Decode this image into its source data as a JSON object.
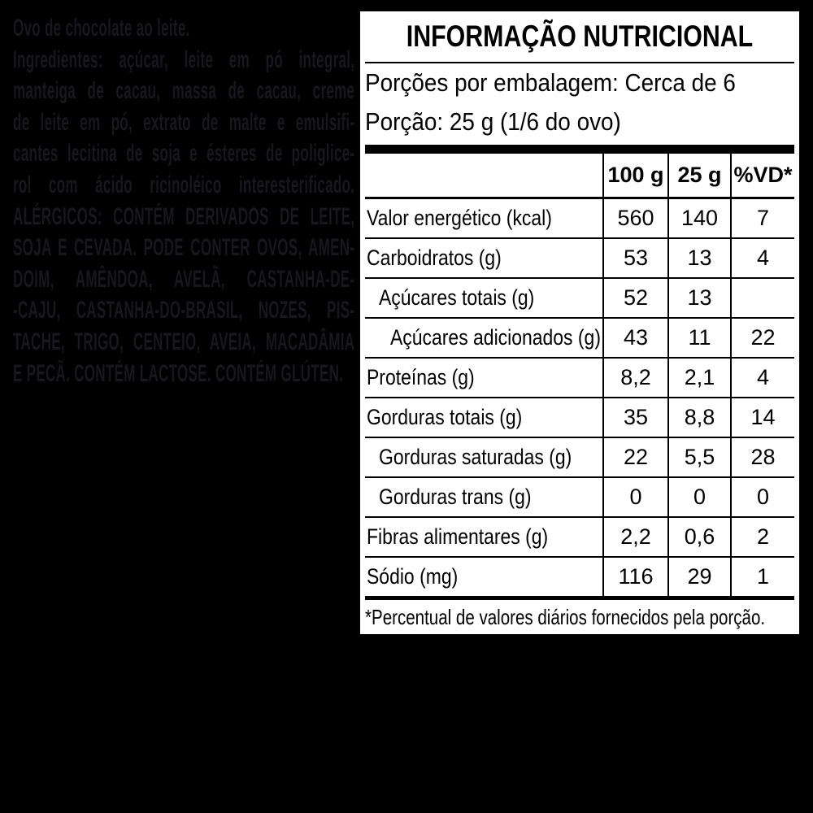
{
  "colors": {
    "background": "#000000",
    "panel_background": "#ffffff",
    "panel_text": "#000000",
    "faint_text": "#17171c"
  },
  "left_panel": {
    "lines": [
      {
        "text": "Ovo de chocolate ao leite.",
        "justify": false
      },
      {
        "text": "Ingredientes:  açúcar, leite em pó integral,",
        "justify": true
      },
      {
        "text": "manteiga de cacau, massa de cacau, creme",
        "justify": true
      },
      {
        "text": "de leite em pó, extrato de malte e emulsifi-",
        "justify": true
      },
      {
        "text": "cantes lecitina de soja e ésteres de poliglice-",
        "justify": true
      },
      {
        "text": "rol com ácido ricinoléico interesterificado.",
        "justify": true
      },
      {
        "text": "ALÉRGICOS: CONTÉM DERIVADOS DE LEITE,",
        "justify": true
      },
      {
        "text": "SOJA E CEVADA. PODE CONTER OVOS, AMEN-",
        "justify": true
      },
      {
        "text": "DOIM, AMÊNDOA, AVELÃ, CASTANHA-DE-",
        "justify": true
      },
      {
        "text": "-CAJU, CASTANHA-DO-BRASIL, NOZES, PIS-",
        "justify": true
      },
      {
        "text": "TACHE, TRIGO, CENTEIO, AVEIA, MACADÂMIA",
        "justify": true
      },
      {
        "text": "E PECÃ. CONTÉM LACTOSE. CONTÉM GLÚTEN.",
        "justify": false
      }
    ]
  },
  "nutrition_panel": {
    "title": "INFORMAÇÃO NUTRICIONAL",
    "servings_line": "Porções por embalagem: Cerca de 6",
    "portion_line": "Porção: 25 g (1/6 do ovo)",
    "columns": [
      "100 g",
      "25 g",
      "%VD*"
    ],
    "rows": [
      {
        "label": "Valor energético (kcal)",
        "indent": 0,
        "v100": "560",
        "v25": "140",
        "vd": "7"
      },
      {
        "label": "Carboidratos (g)",
        "indent": 0,
        "v100": "53",
        "v25": "13",
        "vd": "4"
      },
      {
        "label": "Açúcares totais (g)",
        "indent": 1,
        "v100": "52",
        "v25": "13",
        "vd": ""
      },
      {
        "label": "Açúcares adicionados (g)",
        "indent": 2,
        "v100": "43",
        "v25": "11",
        "vd": "22"
      },
      {
        "label": "Proteínas (g)",
        "indent": 0,
        "v100": "8,2",
        "v25": "2,1",
        "vd": "4"
      },
      {
        "label": "Gorduras totais (g)",
        "indent": 0,
        "v100": "35",
        "v25": "8,8",
        "vd": "14"
      },
      {
        "label": "Gorduras saturadas (g)",
        "indent": 1,
        "v100": "22",
        "v25": "5,5",
        "vd": "28"
      },
      {
        "label": "Gorduras trans (g)",
        "indent": 1,
        "v100": "0",
        "v25": "0",
        "vd": "0"
      },
      {
        "label": "Fibras alimentares (g)",
        "indent": 0,
        "v100": "2,2",
        "v25": "0,6",
        "vd": "2"
      },
      {
        "label": "Sódio (mg)",
        "indent": 0,
        "v100": "116",
        "v25": "29",
        "vd": "1"
      }
    ],
    "footnote": "*Percentual de valores diários fornecidos pela porção."
  }
}
